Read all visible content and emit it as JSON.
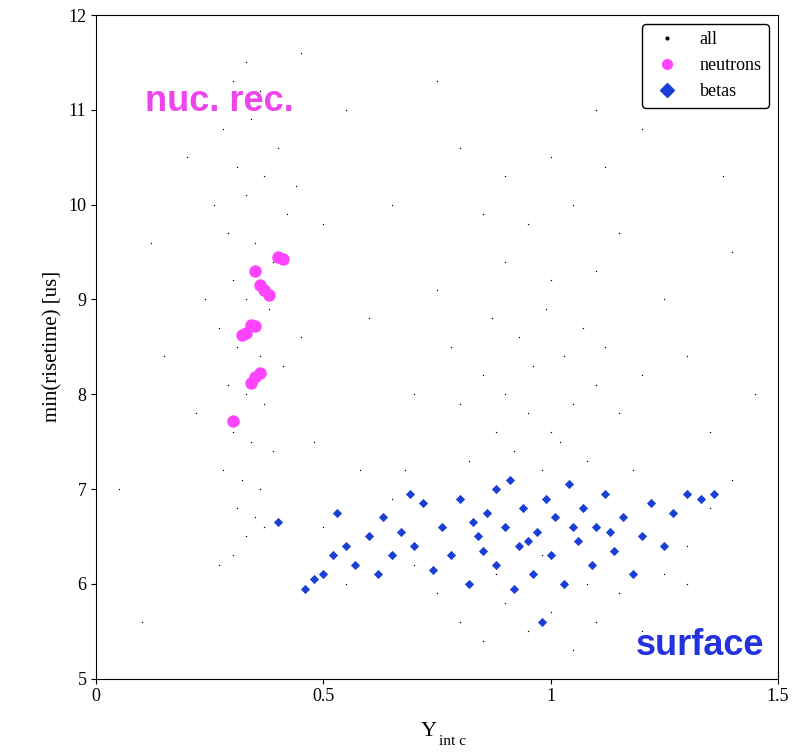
{
  "chart_data": {
    "type": "scatter",
    "x_label": "Y int c",
    "y_label": "min(risetime) [us]",
    "xlim": [
      0,
      1.5
    ],
    "xticks": [
      0,
      0.5,
      1,
      1.5
    ],
    "ylim": [
      5,
      12
    ],
    "yticks": [
      5,
      6,
      7,
      8,
      9,
      10,
      11,
      12
    ],
    "legend": "upper right",
    "annotations": [
      {
        "text": "nuc. rec.",
        "color": "#ee44ee"
      },
      {
        "text": "surface",
        "color": "#2233dd"
      }
    ],
    "series": [
      {
        "name": "all",
        "color": "#000000",
        "marker": "point",
        "x": [
          0.3,
          0.33,
          0.36,
          0.28,
          0.34,
          0.4,
          0.31,
          0.37,
          0.26,
          0.33,
          0.42,
          0.29,
          0.35,
          0.39,
          0.3,
          0.33,
          0.38,
          0.27,
          0.31,
          0.36,
          0.41,
          0.29,
          0.33,
          0.37,
          0.3,
          0.34,
          0.39,
          0.28,
          0.32,
          0.36,
          0.31,
          0.35,
          0.33,
          0.3,
          0.27,
          0.37,
          0.24,
          0.45,
          0.22,
          0.44,
          0.85,
          0.9,
          0.95,
          1.0,
          1.05,
          1.1,
          0.92,
          0.98,
          1.02,
          1.08,
          0.88,
          0.96,
          1.03,
          0.93,
          1.07,
          0.99,
          0.87,
          1.12,
          1.15,
          0.8,
          0.78,
          0.82,
          1.18,
          1.2,
          1.0,
          0.9,
          1.1,
          0.95,
          1.05,
          0.85,
          1.15,
          1.25,
          0.75,
          1.3,
          0.7,
          1.35,
          0.68,
          1.0,
          0.9,
          1.12,
          1.2,
          0.8,
          0.6,
          0.7,
          0.75,
          0.8,
          0.85,
          0.9,
          0.95,
          1.0,
          1.05,
          1.1,
          1.15,
          1.2,
          1.25,
          1.3,
          1.35,
          1.4,
          0.65,
          0.55,
          0.5,
          0.98,
          1.08,
          0.88,
          0.1,
          0.15,
          0.05,
          0.2,
          0.5,
          0.55,
          0.6,
          0.48,
          0.58,
          1.4,
          1.45,
          1.38,
          0.65,
          1.3,
          0.45,
          0.75,
          1.1,
          0.12
        ],
        "y": [
          11.3,
          11.5,
          11.2,
          10.8,
          10.9,
          10.6,
          10.4,
          10.3,
          10.0,
          10.1,
          9.9,
          9.7,
          9.6,
          9.4,
          9.2,
          9.0,
          8.9,
          8.7,
          8.5,
          8.4,
          8.3,
          8.1,
          8.0,
          7.9,
          7.6,
          7.5,
          7.4,
          7.2,
          7.1,
          7.0,
          6.8,
          6.7,
          6.5,
          6.3,
          6.2,
          6.6,
          9.0,
          8.6,
          7.8,
          10.2,
          8.2,
          8.0,
          7.8,
          7.6,
          7.9,
          8.1,
          7.4,
          7.2,
          7.5,
          7.3,
          7.6,
          8.3,
          8.4,
          8.6,
          8.7,
          8.9,
          8.8,
          8.5,
          7.8,
          7.9,
          8.5,
          7.3,
          7.2,
          8.2,
          9.2,
          9.4,
          9.3,
          9.8,
          10.0,
          9.9,
          9.7,
          9.0,
          9.1,
          8.4,
          8.0,
          7.6,
          7.2,
          10.5,
          10.3,
          10.4,
          10.8,
          10.6,
          6.5,
          6.2,
          5.9,
          5.6,
          5.4,
          5.8,
          5.5,
          5.7,
          5.3,
          5.6,
          5.9,
          5.5,
          6.1,
          6.4,
          6.8,
          7.1,
          6.9,
          6.0,
          6.6,
          6.3,
          6.0,
          6.1,
          5.6,
          8.4,
          7.0,
          10.5,
          9.8,
          11.0,
          8.8,
          7.5,
          7.2,
          9.5,
          8.0,
          10.3,
          10.0,
          6.0,
          11.6,
          11.3,
          11.0,
          9.6
        ]
      },
      {
        "name": "neutrons",
        "color": "#ff44ff",
        "marker": "circle",
        "x": [
          0.3,
          0.32,
          0.33,
          0.34,
          0.35,
          0.34,
          0.35,
          0.36,
          0.35,
          0.37,
          0.38,
          0.36,
          0.4,
          0.41
        ],
        "y": [
          7.72,
          8.62,
          8.65,
          8.73,
          8.72,
          8.12,
          8.18,
          8.22,
          9.3,
          9.1,
          9.05,
          9.15,
          9.45,
          9.43
        ]
      },
      {
        "name": "betas",
        "color": "#1a3fd6",
        "marker": "diamond",
        "x": [
          0.46,
          0.48,
          0.5,
          0.52,
          0.55,
          0.57,
          0.6,
          0.62,
          0.63,
          0.65,
          0.67,
          0.7,
          0.72,
          0.74,
          0.76,
          0.78,
          0.8,
          0.82,
          0.84,
          0.86,
          0.88,
          0.9,
          0.91,
          0.93,
          0.94,
          0.96,
          0.97,
          0.99,
          1.0,
          1.01,
          1.03,
          1.04,
          1.06,
          1.07,
          1.09,
          1.1,
          1.12,
          1.14,
          1.16,
          1.18,
          1.2,
          1.22,
          1.25,
          1.27,
          1.3,
          1.33,
          1.36,
          0.85,
          0.92,
          0.98,
          0.4,
          0.53,
          0.69,
          0.88,
          1.05,
          0.95,
          1.13,
          0.83
        ],
        "y": [
          5.95,
          6.05,
          6.1,
          6.3,
          6.4,
          6.2,
          6.5,
          6.1,
          6.7,
          6.3,
          6.55,
          6.4,
          6.85,
          6.15,
          6.6,
          6.3,
          6.9,
          6.0,
          6.5,
          6.75,
          6.2,
          6.6,
          7.1,
          6.4,
          6.8,
          6.1,
          6.55,
          6.9,
          6.3,
          6.7,
          6.0,
          7.05,
          6.45,
          6.8,
          6.2,
          6.6,
          6.95,
          6.35,
          6.7,
          6.1,
          6.5,
          6.85,
          6.4,
          6.75,
          6.95,
          6.9,
          6.95,
          6.35,
          5.95,
          5.6,
          6.65,
          6.75,
          6.95,
          7.0,
          6.6,
          6.45,
          6.55,
          6.65
        ]
      }
    ]
  }
}
